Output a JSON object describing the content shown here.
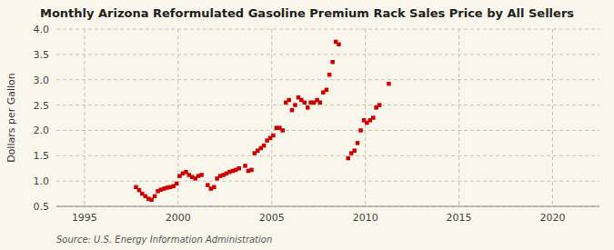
{
  "chart_data": {
    "type": "scatter",
    "title": "Monthly Arizona Reformulated Gasoline Premium Rack Sales Price by All Sellers",
    "ylabel": "Dollars per Gallon",
    "source": "Source: U.S. Energy Information Administration",
    "color": "#CC0000",
    "marker": "square",
    "grid": true,
    "xlim": [
      1993.5,
      2022.5
    ],
    "ylim": [
      0.5,
      4.0
    ],
    "xticks": [
      1995,
      2000,
      2005,
      2010,
      2015,
      2020
    ],
    "yticks": [
      0.5,
      {
        "value": 1.0,
        "label": "1.0"
      },
      1.5,
      {
        "value": 2.0,
        "label": "2.0"
      },
      2.5,
      {
        "value": 3.0,
        "label": "3.0"
      },
      3.5,
      {
        "value": 4.0,
        "label": "4.0"
      }
    ],
    "x": [
      1997.75,
      1997.92,
      1998.08,
      1998.25,
      1998.42,
      1998.58,
      1998.75,
      1998.92,
      1999.08,
      1999.25,
      1999.42,
      1999.58,
      1999.75,
      1999.92,
      2000.08,
      2000.25,
      2000.42,
      2000.58,
      2000.75,
      2000.92,
      2001.08,
      2001.25,
      2001.58,
      2001.75,
      2001.92,
      2002.08,
      2002.25,
      2002.42,
      2002.58,
      2002.75,
      2002.92,
      2003.08,
      2003.25,
      2003.58,
      2003.75,
      2003.92,
      2004.08,
      2004.25,
      2004.42,
      2004.58,
      2004.75,
      2004.92,
      2005.08,
      2005.25,
      2005.42,
      2005.58,
      2005.75,
      2005.92,
      2006.08,
      2006.25,
      2006.42,
      2006.58,
      2006.75,
      2006.92,
      2007.08,
      2007.25,
      2007.42,
      2007.58,
      2007.75,
      2007.92,
      2008.08,
      2008.25,
      2008.42,
      2008.58,
      2009.08,
      2009.25,
      2009.42,
      2009.58,
      2009.75,
      2009.92,
      2010.08,
      2010.25,
      2010.42,
      2010.58,
      2010.75,
      2011.25
    ],
    "values": [
      0.88,
      0.82,
      0.75,
      0.7,
      0.65,
      0.63,
      0.7,
      0.8,
      0.83,
      0.85,
      0.87,
      0.88,
      0.9,
      0.95,
      1.1,
      1.15,
      1.18,
      1.12,
      1.08,
      1.05,
      1.1,
      1.12,
      0.92,
      0.85,
      0.88,
      1.05,
      1.1,
      1.12,
      1.15,
      1.18,
      1.2,
      1.22,
      1.25,
      1.3,
      1.2,
      1.22,
      1.55,
      1.6,
      1.65,
      1.7,
      1.8,
      1.85,
      1.9,
      2.05,
      2.05,
      2.0,
      2.55,
      2.6,
      2.4,
      2.5,
      2.65,
      2.6,
      2.55,
      2.45,
      2.55,
      2.55,
      2.6,
      2.55,
      2.75,
      2.8,
      3.1,
      3.35,
      3.75,
      3.7,
      1.45,
      1.55,
      1.6,
      1.75,
      2.0,
      2.2,
      2.15,
      2.2,
      2.25,
      2.45,
      2.5,
      2.92
    ]
  }
}
